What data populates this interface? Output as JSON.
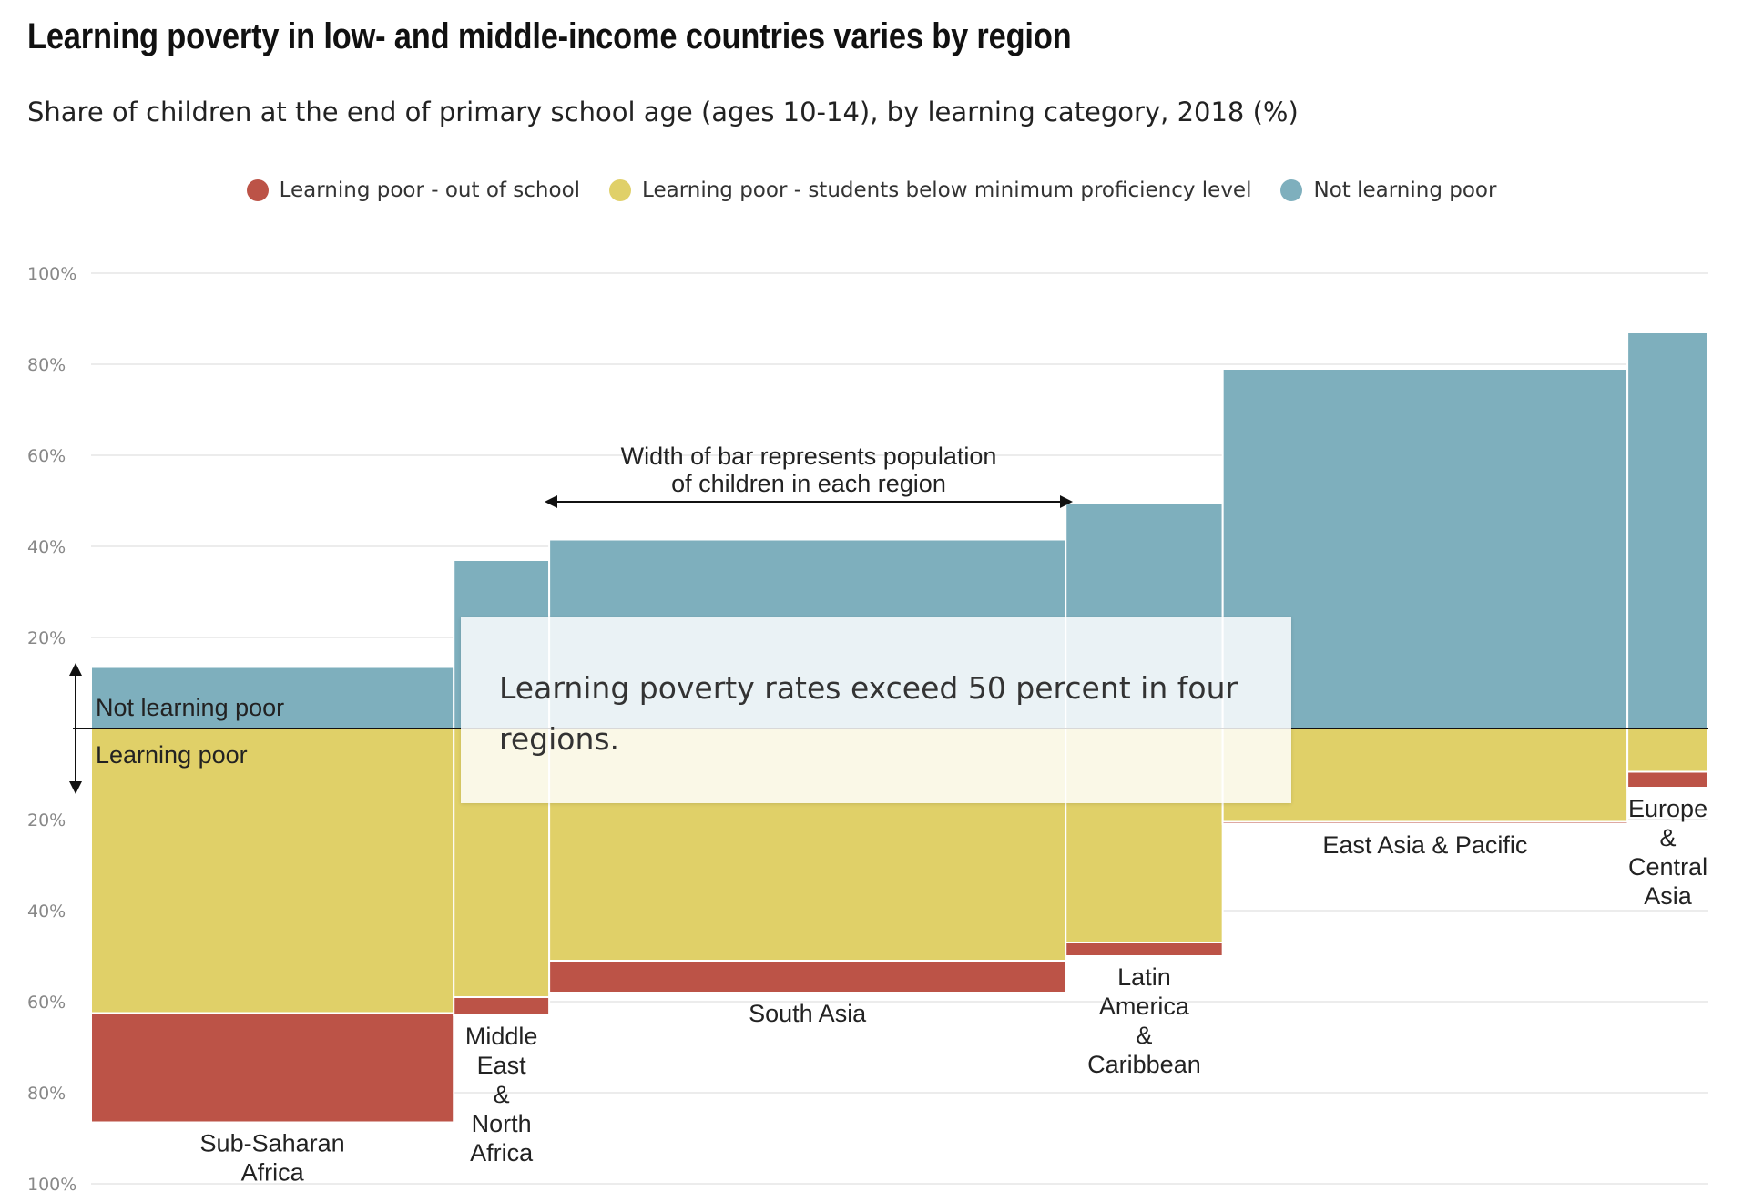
{
  "title": "Learning poverty in low- and middle-income countries varies by region",
  "subtitle": "Share of children at the end of primary school age (ages 10-14), by learning category, 2018 (%)",
  "legend": [
    {
      "label": "Learning poor - out of school",
      "color": "#bc5347"
    },
    {
      "label": "Learning poor - students below minimum proficiency level",
      "color": "#e0d068"
    },
    {
      "label": "Not learning poor",
      "color": "#7eafbd"
    }
  ],
  "callout": {
    "text": "Learning poverty rates exceed 50 percent in four regions."
  },
  "annotations": {
    "width_note": [
      "Width of bar represents population",
      "of children in each region"
    ],
    "not_learning_poor": "Not learning poor",
    "learning_poor": "Learning poor"
  },
  "chart_data": {
    "type": "bar",
    "variant": "mekko-diverging",
    "categories": [
      "Sub-Saharan Africa",
      "Middle East & North Africa",
      "South Asia",
      "Latin America & Caribbean",
      "East Asia & Pacific",
      "Europe & Central Asia"
    ],
    "category_label_lines": [
      [
        "Sub-Saharan",
        "Africa"
      ],
      [
        "Middle",
        "East",
        "&",
        "North",
        "Africa"
      ],
      [
        "South Asia"
      ],
      [
        "Latin",
        "America",
        "&",
        "Caribbean"
      ],
      [
        "East Asia & Pacific"
      ],
      [
        "Europe",
        "&",
        "Central",
        "Asia"
      ]
    ],
    "population_share": [
      22.4,
      5.9,
      31.9,
      9.7,
      25.0,
      5.0
    ],
    "series": [
      {
        "name": "Learning poor - out of school",
        "values": [
          24,
          4,
          7,
          3,
          0.5,
          3.5
        ]
      },
      {
        "name": "Learning poor - students below minimum proficiency level",
        "values": [
          62.5,
          59,
          51,
          47,
          20.5,
          9.5
        ]
      },
      {
        "name": "Not learning poor",
        "values": [
          13.5,
          37,
          41.5,
          49.5,
          79,
          87
        ]
      }
    ],
    "ylim_up": [
      0,
      100
    ],
    "ylim_down": [
      0,
      100
    ],
    "y_ticks": [
      {
        "value": 100,
        "label": "100%"
      },
      {
        "value": 80,
        "label": "80%"
      },
      {
        "value": 60,
        "label": "60%"
      },
      {
        "value": 40,
        "label": "40%"
      },
      {
        "value": 20,
        "label": "20%"
      },
      {
        "value": -20,
        "label": "20%"
      },
      {
        "value": -40,
        "label": "40%"
      },
      {
        "value": -60,
        "label": "60%"
      },
      {
        "value": -80,
        "label": "80%"
      },
      {
        "value": -100,
        "label": "100%"
      }
    ],
    "grid": true,
    "legend_position": "top-center"
  }
}
